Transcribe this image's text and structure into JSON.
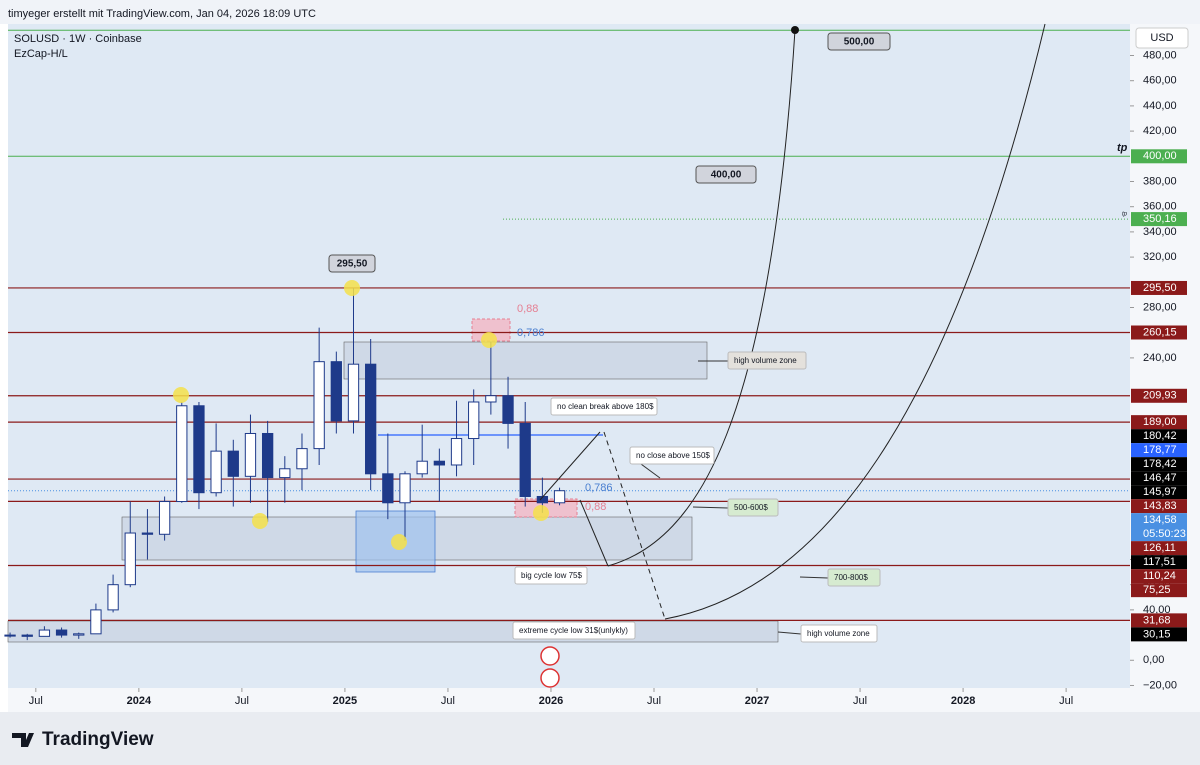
{
  "header": "timyeger erstellt mit TradingView.com, Jan 04, 2026 18:09 UTC",
  "brand": "TradingView",
  "chart_data": {
    "type": "candlestick",
    "title": "SOLUSD · 1W · Coinbase",
    "subtitle": "EzCap-H/L",
    "currency": "USD",
    "x": [
      "2023-05",
      "2023-06",
      "2023-07",
      "2023-08",
      "2023-09",
      "2023-10",
      "2023-11",
      "2023-12",
      "2024-01",
      "2024-02",
      "2024-03",
      "2024-04",
      "2024-05",
      "2024-06",
      "2024-07",
      "2024-08",
      "2024-09",
      "2024-10",
      "2024-11",
      "2024-12",
      "2025-01",
      "2025-02",
      "2025-03",
      "2025-04",
      "2025-05",
      "2025-06",
      "2025-07",
      "2025-08",
      "2025-09",
      "2025-10",
      "2025-11",
      "2025-12",
      "2026-01"
    ],
    "open": [
      20,
      20,
      19,
      24,
      20,
      21,
      40,
      60,
      101,
      100,
      126,
      202,
      133,
      166,
      146,
      180,
      145,
      152,
      168,
      237,
      190,
      235,
      148,
      125,
      148,
      158,
      155,
      176,
      205,
      210,
      188,
      130,
      125
    ],
    "high": [
      22,
      21,
      27,
      26,
      22,
      45,
      68,
      126,
      120,
      130,
      205,
      205,
      188,
      175,
      195,
      190,
      162,
      180,
      264,
      245,
      295.5,
      255,
      180,
      150,
      187,
      168,
      206,
      215,
      253,
      225,
      205,
      145,
      137
    ],
    "low": [
      18,
      16,
      19,
      18,
      17,
      21,
      38,
      58,
      80,
      95,
      125,
      120,
      130,
      122,
      125,
      110,
      125,
      135,
      155,
      180,
      180,
      135,
      112,
      95,
      145,
      126,
      146,
      155,
      195,
      168,
      122,
      117,
      123
    ],
    "close": [
      20,
      19,
      24,
      20,
      21,
      40,
      60,
      101,
      100,
      126,
      202,
      133,
      166,
      146,
      180,
      145,
      152,
      168,
      237,
      190,
      235,
      148,
      125,
      148,
      158,
      155,
      176,
      205,
      210,
      188,
      130,
      125,
      134.58
    ],
    "up_color": "#ffffff",
    "down_color": "#1e3a8a",
    "xlim": [
      2023.365,
      2028.81
    ],
    "xticks": [
      {
        "value": 2023.5,
        "label": "Jul"
      },
      2024,
      {
        "value": 2024.5,
        "label": "Jul"
      },
      2025,
      {
        "value": 2025.5,
        "label": "Jul"
      },
      2026,
      {
        "value": 2026.5,
        "label": "Jul"
      },
      2027,
      {
        "value": 2027.5,
        "label": "Jul"
      },
      2028,
      {
        "value": 2028.5,
        "label": "Jul"
      }
    ],
    "ylim": [
      -22,
      505
    ],
    "yticks": [
      {
        "value": 480,
        "label": "480,00"
      },
      {
        "value": 460,
        "label": "460,00"
      },
      {
        "value": 440,
        "label": "440,00"
      },
      {
        "value": 420,
        "label": "420,00"
      },
      {
        "value": 380,
        "label": "380,00"
      },
      {
        "value": 360,
        "label": "360,00"
      },
      {
        "value": 340,
        "label": "340,00"
      },
      {
        "value": 320,
        "label": "320,00"
      },
      {
        "value": 280,
        "label": "280,00"
      },
      {
        "value": 240,
        "label": "240,00"
      },
      {
        "value": 80,
        "label": "80,00"
      },
      {
        "value": 60,
        "label": "60,00"
      },
      {
        "value": 40,
        "label": "40,00"
      },
      {
        "value": 0,
        "label": "0,00"
      },
      {
        "value": -20,
        "label": "−20,00"
      }
    ],
    "levels": [
      295.5,
      260.15,
      209.93,
      189,
      143.83,
      126.11,
      75.25,
      31.68
    ],
    "level_color": "#8b1a1a",
    "targets": [
      500,
      400
    ],
    "target_color": "#4caf50",
    "dotted_target": 350.16,
    "blue_level": 178.77,
    "price_labels": [
      {
        "value": 295.5,
        "label": "295,50",
        "color": "#8b1a1a"
      },
      {
        "value": 260.15,
        "label": "260,15",
        "color": "#8b1a1a"
      },
      {
        "value": 209.93,
        "label": "209,93",
        "color": "#8b1a1a"
      },
      {
        "value": 189,
        "label": "189,00",
        "color": "#8b1a1a"
      },
      {
        "value": 180.42,
        "label": "180,42",
        "color": "#000000"
      },
      {
        "value": 178.77,
        "label": "178,77",
        "color": "#2962ff"
      },
      {
        "value": 178.42,
        "label": "178,42",
        "color": "#000000"
      },
      {
        "value": 146.47,
        "label": "146,47",
        "color": "#000000"
      },
      {
        "value": 145.97,
        "label": "145,97",
        "color": "#000000"
      },
      {
        "value": 143.83,
        "label": "143,83",
        "color": "#8b1a1a"
      },
      {
        "value": 134.58,
        "label": "134,58",
        "color": "#4a90e2"
      },
      {
        "value": 126.11,
        "label": "126,11",
        "color": "#8b1a1a"
      },
      {
        "value": 117.51,
        "label": "117,51",
        "color": "#000000"
      },
      {
        "value": 110.24,
        "label": "110,24",
        "color": "#8b1a1a"
      },
      {
        "value": 75.25,
        "label": "75,25",
        "color": "#8b1a1a"
      },
      {
        "value": 31.68,
        "label": "31,68",
        "color": "#8b1a1a"
      },
      {
        "value": 30.15,
        "label": "30,15",
        "color": "#000000"
      },
      {
        "value": 400,
        "label": "400,00",
        "color": "#4caf50"
      },
      {
        "value": 350.16,
        "label": "350,16",
        "color": "#4caf50"
      }
    ],
    "countdown": "05:50:23",
    "tp_label": "tp",
    "callouts": [
      {
        "value": 295.5,
        "label": "295,50"
      },
      {
        "value": 500,
        "label": "500,00"
      },
      {
        "value": 400,
        "label": "400,00"
      }
    ],
    "annotations": [
      "high volume zone",
      "no clean break above 180$",
      "no close above 150$",
      "500-600$",
      "big cycle low 75$",
      "700-800$",
      "extreme cycle low  31$(unlykly)",
      "high volume zone"
    ],
    "fibs": [
      {
        "value": 0.88,
        "label": "0,88"
      },
      {
        "value": 0.786,
        "label": "0,786"
      },
      {
        "value": 0.786,
        "label": "0,786"
      },
      {
        "value": 0.88,
        "label": "0,88"
      }
    ]
  }
}
